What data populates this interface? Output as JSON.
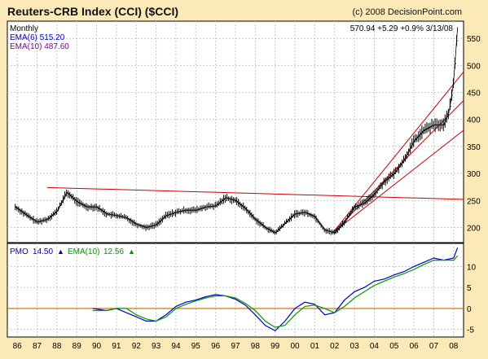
{
  "header": {
    "title": "Reuters-CRB Index (CCI) ($CCI)",
    "copyright": "(c) 2008 DecisionPoint.com"
  },
  "price_panel": {
    "period": "Monthly",
    "last_quote": "570.94  +5.29  +0.9%  3/13/08",
    "ema6_label": "EMA(6) 515.20",
    "ema10_label": "EMA(10) 487.60",
    "colors": {
      "price": "#000000",
      "ema6": "#0000cc",
      "ema10": "#7f00a0",
      "trendline": "#cc0000"
    }
  },
  "pmo_panel": {
    "pmo_label": "PMO",
    "pmo_value": "14.50",
    "ema_label": "EMA(10)",
    "ema_value": "12.56",
    "colors": {
      "pmo": "#0000cc",
      "ema": "#009900",
      "zero": "#cc6600"
    }
  },
  "chart_data": [
    {
      "type": "line",
      "panel": "price",
      "title": "Reuters-CRB Index (CCI) ($CCI)",
      "x": [
        1985.9,
        1986.5,
        1987.0,
        1987.5,
        1988.0,
        1988.5,
        1989.0,
        1989.5,
        1990.0,
        1990.5,
        1991.0,
        1991.5,
        1992.0,
        1992.5,
        1993.0,
        1993.5,
        1994.0,
        1994.5,
        1995.0,
        1995.5,
        1996.0,
        1996.5,
        1997.0,
        1997.5,
        1998.0,
        1998.5,
        1999.0,
        1999.5,
        2000.0,
        2000.5,
        2001.0,
        2001.5,
        2002.0,
        2002.5,
        2003.0,
        2003.5,
        2004.0,
        2004.5,
        2005.0,
        2005.5,
        2006.0,
        2006.5,
        2007.0,
        2007.5,
        2007.8,
        2008.0,
        2008.2
      ],
      "series": [
        {
          "name": "CCI",
          "values": [
            238,
            222,
            210,
            215,
            230,
            265,
            248,
            238,
            238,
            225,
            222,
            218,
            206,
            200,
            205,
            222,
            228,
            232,
            232,
            238,
            240,
            255,
            250,
            235,
            215,
            200,
            190,
            208,
            225,
            228,
            220,
            195,
            190,
            210,
            238,
            245,
            262,
            285,
            300,
            325,
            360,
            380,
            390,
            390,
            420,
            470,
            571
          ]
        }
      ],
      "yticks": [
        200,
        250,
        300,
        350,
        400,
        450,
        500,
        550
      ],
      "xticks": [
        "86",
        "87",
        "88",
        "89",
        "90",
        "91",
        "92",
        "93",
        "94",
        "95",
        "96",
        "97",
        "98",
        "99",
        "00",
        "01",
        "02",
        "03",
        "04",
        "05",
        "06",
        "07",
        "08"
      ],
      "trendlines": [
        {
          "x": [
            1987.5,
            2008.5
          ],
          "y": [
            274,
            252
          ]
        },
        {
          "x": [
            2001.9,
            2008.5
          ],
          "y": [
            190,
            488
          ]
        },
        {
          "x": [
            2001.9,
            2008.5
          ],
          "y": [
            190,
            435
          ]
        },
        {
          "x": [
            2001.9,
            2008.5
          ],
          "y": [
            190,
            380
          ]
        }
      ],
      "ylim": [
        172,
        582
      ],
      "xlim": [
        1985.5,
        2008.5
      ]
    },
    {
      "type": "line",
      "panel": "pmo",
      "x": [
        1989.8,
        1990.5,
        1991.0,
        1991.5,
        1992.0,
        1992.5,
        1993.0,
        1993.5,
        1994.0,
        1994.5,
        1995.0,
        1995.5,
        1996.0,
        1996.5,
        1997.0,
        1997.5,
        1998.0,
        1998.5,
        1999.0,
        1999.5,
        2000.0,
        2000.5,
        2001.0,
        2001.5,
        2002.0,
        2002.5,
        2003.0,
        2003.5,
        2004.0,
        2004.5,
        2005.0,
        2005.5,
        2006.0,
        2006.5,
        2007.0,
        2007.5,
        2008.0,
        2008.2
      ],
      "series": [
        {
          "name": "PMO",
          "values": [
            0,
            -0.5,
            0,
            -1,
            -2,
            -3,
            -3,
            -1.5,
            0.5,
            1.5,
            2,
            2.8,
            3.3,
            3,
            2.2,
            0.8,
            -1.5,
            -4,
            -5.3,
            -3,
            0,
            1.5,
            1,
            -1.5,
            -1,
            2,
            4,
            5,
            6.5,
            7,
            8,
            8.8,
            10,
            11,
            12,
            11.5,
            12,
            14.5
          ]
        },
        {
          "name": "EMA(10)",
          "values": [
            -0.5,
            -0.5,
            0,
            0,
            -1.5,
            -2.5,
            -3,
            -2,
            0,
            1,
            1.8,
            2.5,
            3,
            3,
            2.5,
            1.2,
            -0.5,
            -3,
            -4.5,
            -4,
            -1.5,
            0.5,
            0.8,
            0,
            -1,
            0.5,
            2.5,
            4,
            5.5,
            6.5,
            7.5,
            8.3,
            9.3,
            10.5,
            11.5,
            11.5,
            11.5,
            12.56
          ]
        }
      ],
      "yticks": [
        -5,
        0,
        5,
        10
      ],
      "ylim": [
        -6.8,
        15.5
      ]
    }
  ]
}
